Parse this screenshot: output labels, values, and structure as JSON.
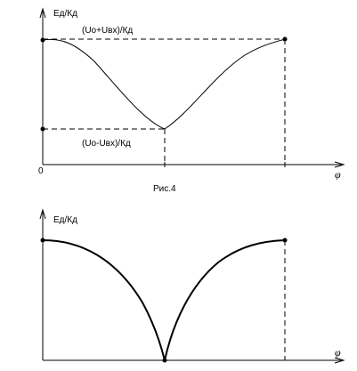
{
  "figure1": {
    "y_label": "Ед/Кд",
    "upper_level": "(Uо+Uвх)/Кд",
    "lower_level": "(Uо-Uвх)/Кд",
    "origin": "0",
    "x_label": "φ",
    "caption": "Рис.4"
  },
  "figure2": {
    "y_label": "Ед/Кд",
    "x_label": "φ"
  }
}
